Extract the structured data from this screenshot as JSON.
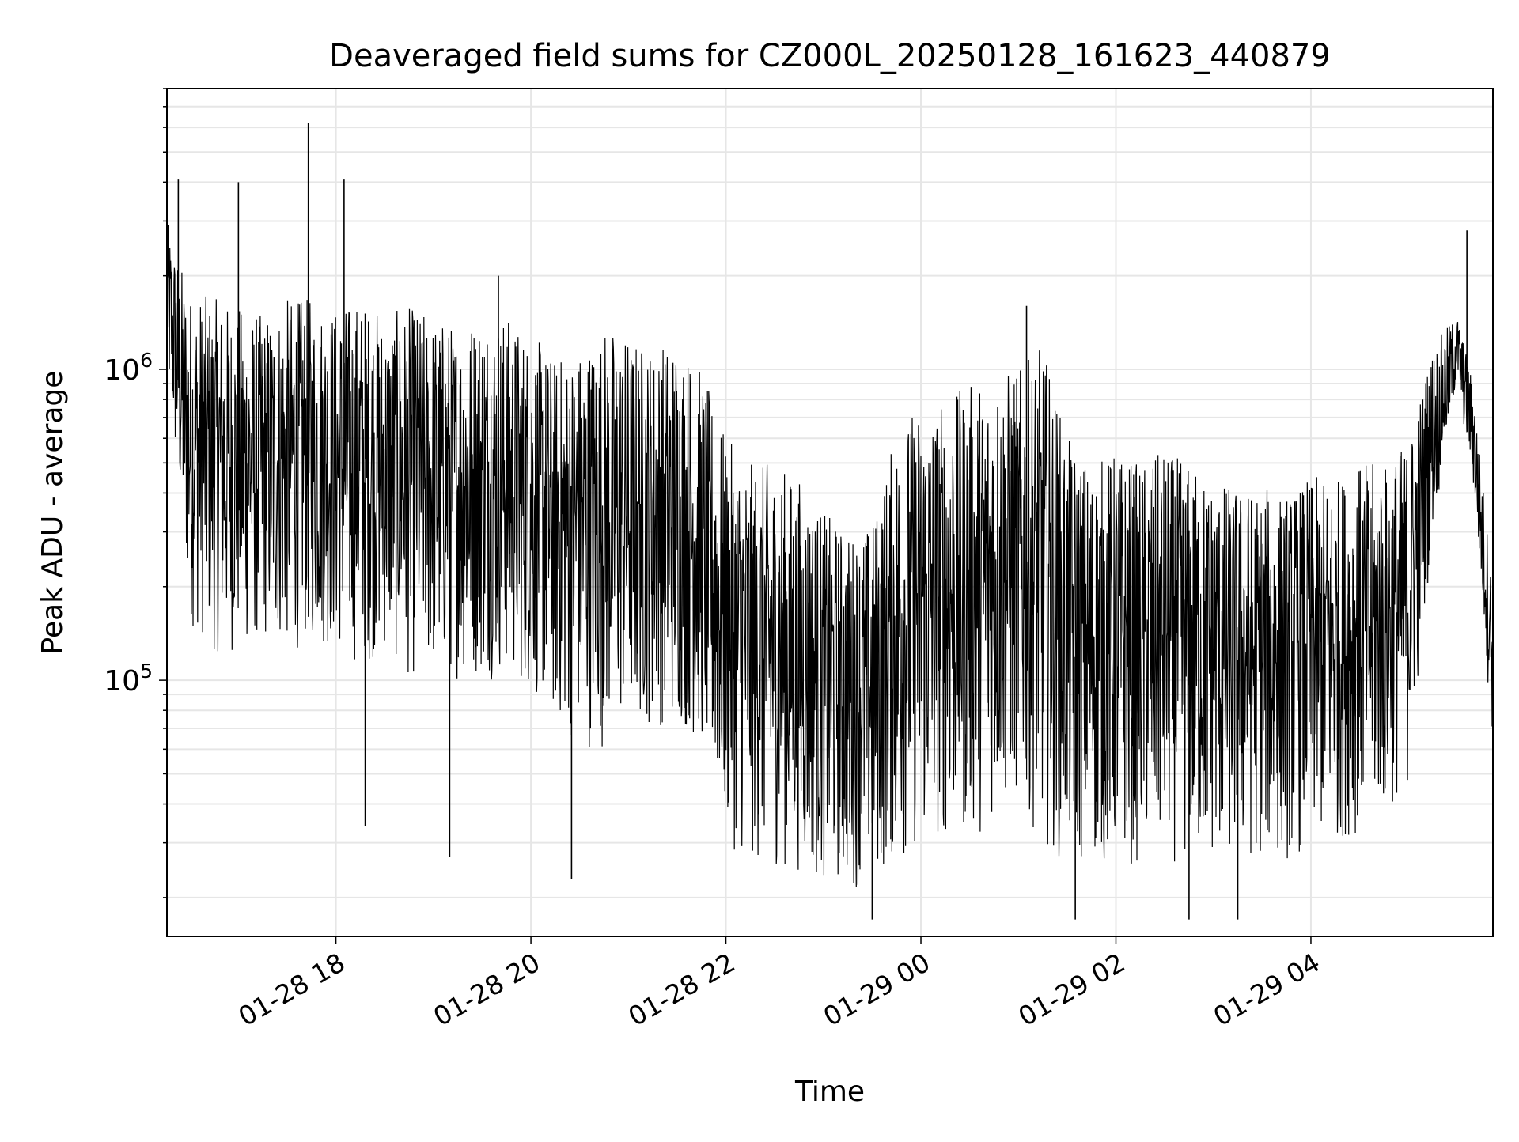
{
  "chart_data": {
    "type": "line",
    "title": "Deaveraged field sums for CZ000L_20250128_161623_440879",
    "xlabel": "Time",
    "ylabel": "Peak ADU - average",
    "y_scale": "log",
    "y_tick_labels": [
      {
        "base": "10",
        "exp": "6",
        "value": 1000000
      },
      {
        "base": "10",
        "exp": "5",
        "value": 100000
      }
    ],
    "x_tick_labels": [
      "01-28 18",
      "01-28 20",
      "01-28 22",
      "01-29 00",
      "01-29 02",
      "01-29 04"
    ],
    "xlim": [
      "2025-01-28 16:16",
      "2025-01-29 05:52"
    ],
    "ylim": [
      15000,
      8000000
    ],
    "grid": true,
    "line_color": "#000000",
    "series": [
      {
        "x": [
          "2025-01-28 16:16",
          "2025-01-28 16:30",
          "2025-01-28 16:45",
          "2025-01-28 17:00",
          "2025-01-28 17:15",
          "2025-01-28 17:30",
          "2025-01-28 17:45",
          "2025-01-28 18:00",
          "2025-01-28 18:15",
          "2025-01-28 18:30",
          "2025-01-28 18:45",
          "2025-01-28 19:00",
          "2025-01-28 19:15",
          "2025-01-28 19:30",
          "2025-01-28 19:45",
          "2025-01-28 20:00",
          "2025-01-28 20:15",
          "2025-01-28 20:30",
          "2025-01-28 20:45",
          "2025-01-28 21:00",
          "2025-01-28 21:15",
          "2025-01-28 21:30",
          "2025-01-28 21:45",
          "2025-01-28 22:00",
          "2025-01-28 22:15",
          "2025-01-28 22:30",
          "2025-01-28 22:45",
          "2025-01-28 23:00",
          "2025-01-28 23:15",
          "2025-01-28 23:30",
          "2025-01-28 23:45",
          "2025-01-29 00:00",
          "2025-01-29 00:15",
          "2025-01-29 00:30",
          "2025-01-29 00:45",
          "2025-01-29 01:00",
          "2025-01-29 01:15",
          "2025-01-29 01:30",
          "2025-01-29 01:45",
          "2025-01-29 02:00",
          "2025-01-29 02:15",
          "2025-01-29 02:30",
          "2025-01-29 02:45",
          "2025-01-29 03:00",
          "2025-01-29 03:15",
          "2025-01-29 03:30",
          "2025-01-29 03:45",
          "2025-01-29 04:00",
          "2025-01-29 04:15",
          "2025-01-29 04:30",
          "2025-01-29 04:45",
          "2025-01-29 05:00",
          "2025-01-29 05:15",
          "2025-01-29 05:30",
          "2025-01-29 05:40",
          "2025-01-29 05:52"
        ],
        "y_high": [
          3000000,
          1800000,
          1700000,
          1600000,
          1500000,
          1700000,
          1700000,
          1600000,
          1700000,
          1500000,
          1600000,
          1500000,
          1400000,
          1600000,
          1500000,
          1300000,
          1100000,
          1200000,
          1400000,
          1300000,
          1200000,
          1300000,
          1000000,
          600000,
          500000,
          500000,
          450000,
          350000,
          300000,
          320000,
          650000,
          800000,
          800000,
          900000,
          1000000,
          1000000,
          1200000,
          600000,
          500000,
          550000,
          500000,
          550000,
          500000,
          450000,
          420000,
          420000,
          400000,
          450000,
          450000,
          500000,
          500000,
          600000,
          1200000,
          1500000,
          900000,
          200000
        ],
        "y_low": [
          900000,
          150000,
          120000,
          120000,
          130000,
          120000,
          130000,
          120000,
          110000,
          120000,
          100000,
          100000,
          100000,
          100000,
          100000,
          90000,
          70000,
          60000,
          60000,
          70000,
          70000,
          70000,
          60000,
          30000,
          25000,
          25000,
          24000,
          22000,
          21000,
          22000,
          25000,
          28000,
          30000,
          30000,
          35000,
          40000,
          30000,
          25000,
          25000,
          25000,
          25000,
          26000,
          25000,
          25000,
          25000,
          26000,
          26000,
          28000,
          30000,
          32000,
          35000,
          45000,
          300000,
          900000,
          400000,
          60000
        ]
      }
    ],
    "spikes": [
      {
        "x": "2025-01-28 16:23",
        "y": 4100000
      },
      {
        "x": "2025-01-28 17:00",
        "y": 4000000
      },
      {
        "x": "2025-01-28 17:43",
        "y": 6200000
      },
      {
        "x": "2025-01-28 18:05",
        "y": 4100000
      },
      {
        "x": "2025-01-28 19:40",
        "y": 2000000
      },
      {
        "x": "2025-01-29 01:05",
        "y": 1600000
      },
      {
        "x": "2025-01-29 05:36",
        "y": 2800000
      }
    ],
    "dips": [
      {
        "x": "2025-01-28 18:18",
        "y": 34000
      },
      {
        "x": "2025-01-28 19:10",
        "y": 27000
      },
      {
        "x": "2025-01-28 20:25",
        "y": 23000
      },
      {
        "x": "2025-01-28 23:30",
        "y": 17000
      },
      {
        "x": "2025-01-29 01:35",
        "y": 17000
      },
      {
        "x": "2025-01-29 02:45",
        "y": 17000
      },
      {
        "x": "2025-01-29 03:15",
        "y": 17000
      }
    ]
  }
}
